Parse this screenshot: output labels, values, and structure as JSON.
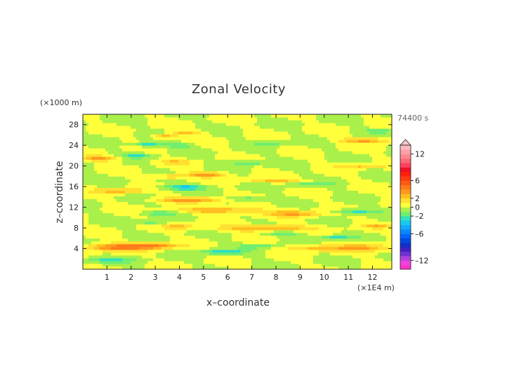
{
  "chart_data": {
    "type": "heatmap",
    "title": "Zonal Velocity",
    "xlabel": "x–coordinate",
    "ylabel": "z–coordinate",
    "x_unit": "(×1E4 m)",
    "y_unit": "(×1000 m)",
    "time_label": "74400 s",
    "xlim": [
      0,
      12.8
    ],
    "ylim": [
      0,
      30
    ],
    "x_ticks": [
      1,
      2,
      3,
      4,
      5,
      6,
      7,
      8,
      9,
      10,
      11,
      12
    ],
    "y_ticks": [
      4,
      8,
      12,
      16,
      20,
      24,
      28
    ],
    "colorbar": {
      "levels": [
        -14,
        -13,
        -12,
        -11,
        -10,
        -9,
        -8,
        -7,
        -6,
        -5,
        -4,
        -3,
        -2,
        -1,
        0,
        1,
        2,
        3,
        4,
        5,
        6,
        7,
        8,
        9,
        10,
        11,
        12,
        13,
        14
      ],
      "tick_labels": [
        "12",
        "6",
        "2",
        "0",
        "–2",
        "–6",
        "–12"
      ],
      "tick_values": [
        12,
        6,
        2,
        0,
        -2,
        -6,
        -12
      ],
      "colors": [
        "#ff33cc",
        "#ee44dd",
        "#b040e0",
        "#7030d0",
        "#4020c0",
        "#1030c8",
        "#0048e0",
        "#0066ff",
        "#0a88ff",
        "#10aaff",
        "#18c8f0",
        "#30e0c0",
        "#70ee70",
        "#aaf04a",
        "#ffff3c",
        "#ffe030",
        "#ffbf20",
        "#ff9a1e",
        "#ff7a1a",
        "#ff5a14",
        "#ff3c10",
        "#ff200c",
        "#f0102a",
        "#ff4060",
        "#ff6878",
        "#ff8890",
        "#ffa0a8",
        "#ffb8bc"
      ],
      "extend": "max"
    },
    "features": [
      {
        "x": 1.4,
        "z": 4.3,
        "sx": 1.3,
        "sz": 0.7,
        "amp": 4.5
      },
      {
        "x": 3.0,
        "z": 4.6,
        "sx": 1.0,
        "sz": 0.6,
        "amp": 3.5
      },
      {
        "x": 11.6,
        "z": 4.2,
        "sx": 1.1,
        "sz": 0.7,
        "amp": 3.0
      },
      {
        "x": 9.6,
        "z": 4.1,
        "sx": 1.2,
        "sz": 0.6,
        "amp": 2.5
      },
      {
        "x": 5.8,
        "z": 3.4,
        "sx": 0.9,
        "sz": 0.5,
        "amp": -3.0
      },
      {
        "x": 7.3,
        "z": 4.5,
        "sx": 0.7,
        "sz": 0.4,
        "amp": -2.2
      },
      {
        "x": 10.5,
        "z": 6.2,
        "sx": 0.8,
        "sz": 0.4,
        "amp": -2.5
      },
      {
        "x": 1.0,
        "z": 1.8,
        "sx": 1.2,
        "sz": 0.5,
        "amp": -2.0
      },
      {
        "x": 7.5,
        "z": 8.0,
        "sx": 1.8,
        "sz": 0.6,
        "amp": 3.5
      },
      {
        "x": 4.0,
        "z": 8.3,
        "sx": 0.6,
        "sz": 0.5,
        "amp": 2.5
      },
      {
        "x": 12.2,
        "z": 8.4,
        "sx": 0.6,
        "sz": 0.4,
        "amp": 2.5
      },
      {
        "x": 2.8,
        "z": 9.2,
        "sx": 0.6,
        "sz": 0.4,
        "amp": -2.0
      },
      {
        "x": 8.3,
        "z": 7.0,
        "sx": 0.8,
        "sz": 0.4,
        "amp": -2.2
      },
      {
        "x": 5.7,
        "z": 11.5,
        "sx": 1.6,
        "sz": 0.6,
        "amp": 3.2
      },
      {
        "x": 8.8,
        "z": 10.8,
        "sx": 1.2,
        "sz": 0.6,
        "amp": 3.0
      },
      {
        "x": 11.3,
        "z": 11.2,
        "sx": 1.0,
        "sz": 0.5,
        "amp": -2.5
      },
      {
        "x": 3.2,
        "z": 10.9,
        "sx": 0.7,
        "sz": 0.4,
        "amp": -2.0
      },
      {
        "x": 4.4,
        "z": 13.5,
        "sx": 1.3,
        "sz": 0.5,
        "amp": 3.8
      },
      {
        "x": 6.8,
        "z": 13.7,
        "sx": 0.9,
        "sz": 0.4,
        "amp": -2.2
      },
      {
        "x": 1.5,
        "z": 15.2,
        "sx": 1.0,
        "sz": 0.5,
        "amp": 2.8
      },
      {
        "x": 4.2,
        "z": 15.9,
        "sx": 0.9,
        "sz": 0.5,
        "amp": -3.5
      },
      {
        "x": 5.1,
        "z": 18.4,
        "sx": 0.8,
        "sz": 0.5,
        "amp": 3.8
      },
      {
        "x": 3.6,
        "z": 18.0,
        "sx": 0.7,
        "sz": 0.4,
        "amp": 2.5
      },
      {
        "x": 8.0,
        "z": 17.2,
        "sx": 1.3,
        "sz": 0.4,
        "amp": 2.2
      },
      {
        "x": 9.6,
        "z": 16.5,
        "sx": 1.0,
        "sz": 0.4,
        "amp": -1.8
      },
      {
        "x": 0.7,
        "z": 21.5,
        "sx": 0.8,
        "sz": 0.5,
        "amp": 3.2
      },
      {
        "x": 2.2,
        "z": 22.0,
        "sx": 0.6,
        "sz": 0.4,
        "amp": -2.5
      },
      {
        "x": 3.8,
        "z": 20.8,
        "sx": 0.7,
        "sz": 0.4,
        "amp": 2.2
      },
      {
        "x": 6.8,
        "z": 20.6,
        "sx": 0.8,
        "sz": 0.4,
        "amp": -2.0
      },
      {
        "x": 11.5,
        "z": 20.0,
        "sx": 1.0,
        "sz": 0.4,
        "amp": 2.2
      },
      {
        "x": 3.4,
        "z": 25.8,
        "sx": 0.5,
        "sz": 0.4,
        "amp": 3.0
      },
      {
        "x": 4.3,
        "z": 26.5,
        "sx": 0.6,
        "sz": 0.4,
        "amp": 2.5
      },
      {
        "x": 2.7,
        "z": 24.2,
        "sx": 0.6,
        "sz": 0.4,
        "amp": -3.0
      },
      {
        "x": 4.0,
        "z": 24.0,
        "sx": 0.5,
        "sz": 0.4,
        "amp": -2.5
      },
      {
        "x": 11.7,
        "z": 25.0,
        "sx": 1.0,
        "sz": 0.5,
        "amp": 3.5
      },
      {
        "x": 12.3,
        "z": 26.8,
        "sx": 0.6,
        "sz": 0.4,
        "amp": -2.0
      },
      {
        "x": 7.8,
        "z": 24.5,
        "sx": 0.8,
        "sz": 0.4,
        "amp": -1.8
      }
    ]
  }
}
